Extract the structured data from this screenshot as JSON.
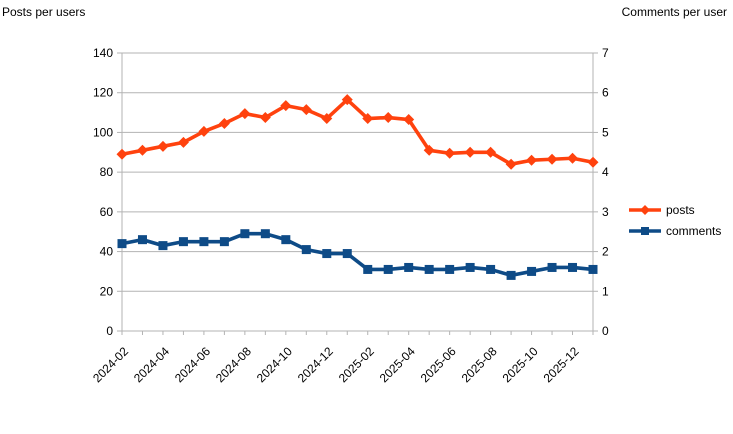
{
  "chart_data": {
    "type": "line",
    "title": "",
    "x": [
      "2024-02",
      "2024-03",
      "2024-04",
      "2024-05",
      "2024-06",
      "2024-07",
      "2024-08",
      "2024-09",
      "2024-10",
      "2024-11",
      "2024-12",
      "2025-01",
      "2025-02",
      "2025-03",
      "2025-04",
      "2025-05",
      "2025-06",
      "2025-07",
      "2025-08",
      "2025-09",
      "2025-10",
      "2025-11",
      "2025-12",
      "2026-01"
    ],
    "x_tick_labels": [
      "2024-02",
      "2024-04",
      "2024-06",
      "2024-08",
      "2024-10",
      "2024-12",
      "2025-02",
      "2025-04",
      "2025-06",
      "2025-08",
      "2025-10",
      "2025-12"
    ],
    "x_tick_every": 2,
    "series": [
      {
        "name": "posts",
        "axis": "left",
        "color": "#FF420E",
        "marker": "diamond",
        "values": [
          89,
          91,
          93,
          95,
          100.5,
          104.5,
          109.5,
          107.5,
          113.5,
          111.5,
          107,
          116.5,
          107,
          107.5,
          106.5,
          91,
          89.5,
          90,
          90,
          84,
          86,
          86.5,
          87,
          85
        ]
      },
      {
        "name": "comments",
        "axis": "right",
        "color": "#0E4B87",
        "marker": "square",
        "values": [
          2.2,
          2.3,
          2.15,
          2.25,
          2.25,
          2.25,
          2.45,
          2.45,
          2.3,
          2.05,
          1.95,
          1.95,
          1.55,
          1.55,
          1.6,
          1.55,
          1.55,
          1.6,
          1.55,
          1.4,
          1.5,
          1.6,
          1.6,
          1.55
        ]
      }
    ],
    "left_axis": {
      "title": "Posts per users",
      "min": 0,
      "max": 140,
      "step": 20,
      "tick_labels": [
        "0",
        "20",
        "40",
        "60",
        "80",
        "100",
        "120",
        "140"
      ]
    },
    "right_axis": {
      "title": "Comments per user",
      "min": 0,
      "max": 7,
      "step": 1,
      "tick_labels": [
        "0",
        "1",
        "2",
        "3",
        "4",
        "5",
        "6",
        "7"
      ]
    },
    "grid": true,
    "legend_position": "right",
    "colors": {
      "grid": "#B3B3B3",
      "axis": "#B3B3B3",
      "text": "#000000",
      "background": "#FFFFFF"
    }
  },
  "legend": {
    "items": [
      {
        "label": "posts"
      },
      {
        "label": "comments"
      }
    ]
  }
}
